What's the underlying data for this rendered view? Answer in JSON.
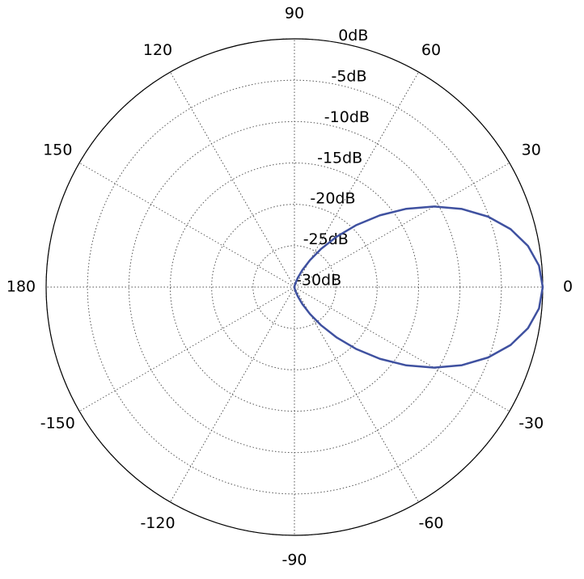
{
  "chart_data": {
    "type": "polar",
    "series": [
      {
        "color": "#3f51a0",
        "theta": [
          -90,
          -85,
          -80,
          -75,
          -70,
          -65,
          -60,
          -55,
          -50,
          -45,
          -40,
          -35,
          -30,
          -25,
          -20,
          -15,
          -10,
          -5,
          0,
          5,
          10,
          15,
          20,
          25,
          30,
          35,
          40,
          45,
          50,
          55,
          60,
          65,
          70,
          75,
          80,
          85,
          90
        ],
        "values": [
          -30,
          -29.98,
          -29.84,
          -29.48,
          -28.8,
          -27.74,
          -26.25,
          -24.34,
          -22.03,
          -19.39,
          -16.51,
          -13.51,
          -10.52,
          -7.67,
          -5.11,
          -2.96,
          -1.35,
          -0.34,
          0,
          -0.34,
          -1.35,
          -2.96,
          -5.11,
          -7.67,
          -10.52,
          -13.51,
          -16.51,
          -19.39,
          -22.03,
          -24.34,
          -26.25,
          -27.74,
          -28.8,
          -29.48,
          -29.84,
          -29.98,
          -30
        ]
      }
    ],
    "thetaticks": [
      0,
      30,
      60,
      90,
      120,
      150,
      180,
      -150,
      -120,
      -90,
      -60,
      -30
    ],
    "rlim": [
      -30,
      0
    ],
    "rticks": [
      {
        "value": -30,
        "label": "-30dB"
      },
      {
        "value": -25,
        "label": "-25dB"
      },
      {
        "value": -20,
        "label": "-20dB"
      },
      {
        "value": -15,
        "label": "-15dB"
      },
      {
        "value": -10,
        "label": "-10dB"
      },
      {
        "value": -5,
        "label": "-5dB"
      },
      {
        "value": 0,
        "label": "0dB"
      }
    ],
    "grid": true
  }
}
